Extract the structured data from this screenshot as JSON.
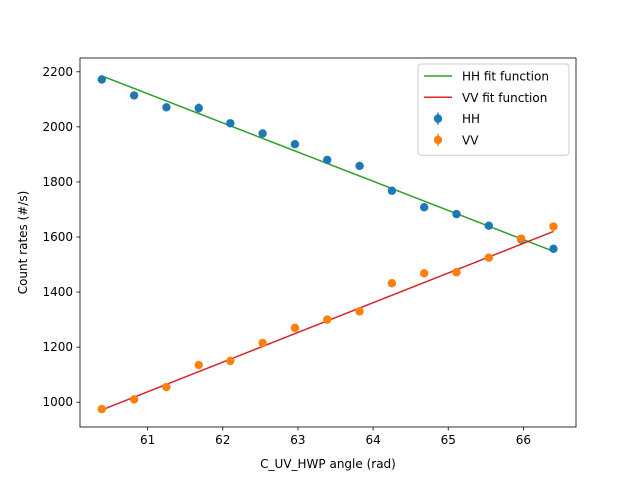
{
  "chart_data": {
    "type": "scatter",
    "title": "",
    "xlabel": "C_UV_HWP angle (rad)",
    "ylabel": "Count rates (#/s)",
    "xlim": [
      60.1,
      66.7
    ],
    "ylim": [
      910,
      2250
    ],
    "xticks": [
      61,
      62,
      63,
      64,
      65,
      66
    ],
    "yticks": [
      1000,
      1200,
      1400,
      1600,
      1800,
      2000,
      2200
    ],
    "grid": false,
    "legend_position": "top-right",
    "series": [
      {
        "name": "HH",
        "kind": "errorbar",
        "color": "#1f77b4",
        "x": [
          60.39,
          60.82,
          61.25,
          61.68,
          62.1,
          62.53,
          62.96,
          63.39,
          63.82,
          64.25,
          64.68,
          65.11,
          65.54,
          65.97,
          66.4
        ],
        "y": [
          2172,
          2114,
          2071,
          2068,
          2013,
          1976,
          1937,
          1880,
          1858,
          1768,
          1708,
          1683,
          1641,
          1591,
          1557
        ],
        "yerr": [
          15,
          14,
          13,
          17,
          12,
          14,
          12,
          11,
          15,
          10,
          11,
          11,
          10,
          10,
          10
        ]
      },
      {
        "name": "VV",
        "kind": "errorbar",
        "color": "#ff7f0e",
        "x": [
          60.39,
          60.82,
          61.25,
          61.68,
          62.1,
          62.53,
          62.96,
          63.39,
          63.82,
          64.25,
          64.68,
          65.11,
          65.54,
          65.97,
          66.4
        ],
        "y": [
          975,
          1010,
          1055,
          1135,
          1150,
          1215,
          1270,
          1300,
          1330,
          1432,
          1468,
          1472,
          1525,
          1594,
          1638
        ],
        "yerr": [
          8,
          9,
          10,
          9,
          15,
          14,
          9,
          10,
          11,
          10,
          9,
          9,
          9,
          10,
          15
        ]
      },
      {
        "name": "HH fit function",
        "kind": "line",
        "color": "#2ca02c",
        "x": [
          60.39,
          66.4
        ],
        "y": [
          2185,
          1548
        ]
      },
      {
        "name": "VV fit function",
        "kind": "line",
        "color": "#d62728",
        "x": [
          60.39,
          66.4
        ],
        "y": [
          972,
          1620
        ]
      }
    ]
  }
}
